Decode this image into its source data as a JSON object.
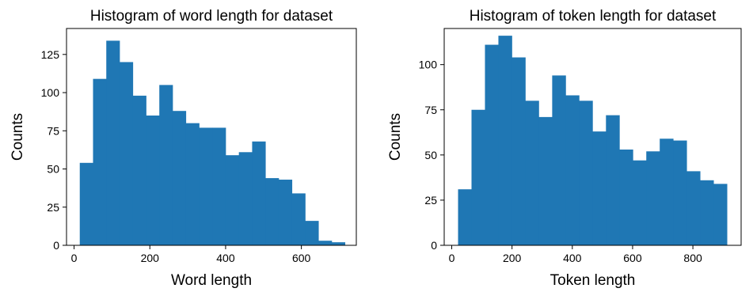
{
  "colors": {
    "bar": "#1f77b4",
    "axis": "#000000",
    "background": "#ffffff"
  },
  "chart_data": [
    {
      "type": "bar",
      "title": "Histogram of word length for dataset",
      "xlabel": "Word length",
      "ylabel": "Counts",
      "xlim": [
        -20,
        745
      ],
      "ylim": [
        0,
        142
      ],
      "xticks": [
        0,
        200,
        400,
        600
      ],
      "xtick_labels": [
        "0",
        "200",
        "400",
        "600"
      ],
      "yticks": [
        0,
        25,
        50,
        75,
        100,
        125
      ],
      "ytick_labels": [
        "0",
        "25",
        "50",
        "75",
        "100",
        "125"
      ],
      "grid": false,
      "legend": "none",
      "bin_edges": [
        15,
        50,
        85,
        120,
        155,
        190,
        225,
        260,
        295,
        330,
        365,
        400,
        435,
        470,
        505,
        540,
        575,
        610,
        645,
        680,
        715
      ],
      "values": [
        54,
        109,
        134,
        120,
        98,
        85,
        105,
        88,
        80,
        77,
        77,
        59,
        61,
        68,
        44,
        43,
        34,
        16,
        3,
        2
      ]
    },
    {
      "type": "bar",
      "title": "Histogram of token length for dataset",
      "xlabel": "Token length",
      "ylabel": "Counts",
      "xlim": [
        -25,
        960
      ],
      "ylim": [
        0,
        120
      ],
      "xticks": [
        0,
        200,
        400,
        600,
        800
      ],
      "xtick_labels": [
        "0",
        "200",
        "400",
        "600",
        "800"
      ],
      "yticks": [
        0,
        25,
        50,
        75,
        100
      ],
      "ytick_labels": [
        "0",
        "25",
        "50",
        "75",
        "100"
      ],
      "grid": false,
      "legend": "none",
      "bin_edges": [
        21,
        65.6,
        110.2,
        154.8,
        199.4,
        244,
        288.6,
        333.2,
        377.8,
        422.4,
        467,
        511.6,
        556.2,
        600.8,
        645.4,
        690,
        734.6,
        779.2,
        823.8,
        868.4,
        913
      ],
      "values": [
        31,
        75,
        111,
        116,
        104,
        80,
        71,
        94,
        83,
        80,
        63,
        72,
        53,
        47,
        52,
        59,
        58,
        41,
        36,
        34
      ]
    }
  ]
}
